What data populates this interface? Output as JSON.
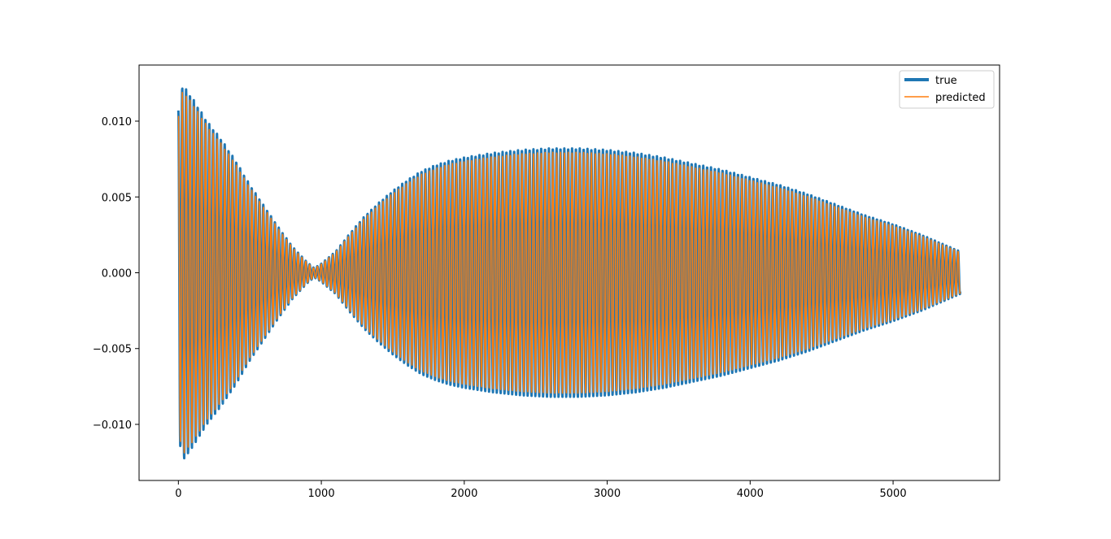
{
  "chart_data": {
    "type": "line",
    "title": "",
    "xlabel": "",
    "ylabel": "",
    "xlim": [
      -275,
      5745
    ],
    "ylim": [
      -0.0137,
      0.0137
    ],
    "x_ticks": [
      0,
      1000,
      2000,
      3000,
      4000,
      5000
    ],
    "x_tick_labels": [
      "0",
      "1000",
      "2000",
      "3000",
      "4000",
      "5000"
    ],
    "y_ticks": [
      0.01,
      0.005,
      0.0,
      -0.005,
      -0.01
    ],
    "y_tick_labels": [
      "0.010",
      "0.005",
      "0.000",
      "−0.005",
      "−0.010"
    ],
    "grid": false,
    "legend_position": "top-right",
    "x_range": [
      0,
      5470
    ],
    "oscillation_period": 27,
    "amplitude_envelope": {
      "x": [
        0,
        30,
        100,
        200,
        300,
        400,
        500,
        600,
        700,
        800,
        900,
        950,
        1000,
        1100,
        1200,
        1300,
        1400,
        1500,
        1600,
        1700,
        1800,
        1900,
        2000,
        2200,
        2400,
        2600,
        2800,
        3000,
        3200,
        3400,
        3600,
        3800,
        4000,
        4200,
        4400,
        4600,
        4800,
        5000,
        5200,
        5470
      ],
      "y": [
        0.0107,
        0.0124,
        0.0115,
        0.01,
        0.0088,
        0.0074,
        0.0058,
        0.0044,
        0.003,
        0.0017,
        0.0007,
        0.0003,
        0.0006,
        0.0014,
        0.0026,
        0.0037,
        0.0046,
        0.0054,
        0.0061,
        0.0067,
        0.0071,
        0.0074,
        0.0076,
        0.0079,
        0.0081,
        0.0082,
        0.0082,
        0.0081,
        0.0079,
        0.0076,
        0.0072,
        0.0068,
        0.0063,
        0.0058,
        0.0052,
        0.0045,
        0.0038,
        0.0032,
        0.0025,
        0.0014
      ]
    },
    "series": [
      {
        "name": "true",
        "color": "#1f77b4"
      },
      {
        "name": "predicted",
        "color": "#ff7f0e"
      }
    ]
  }
}
